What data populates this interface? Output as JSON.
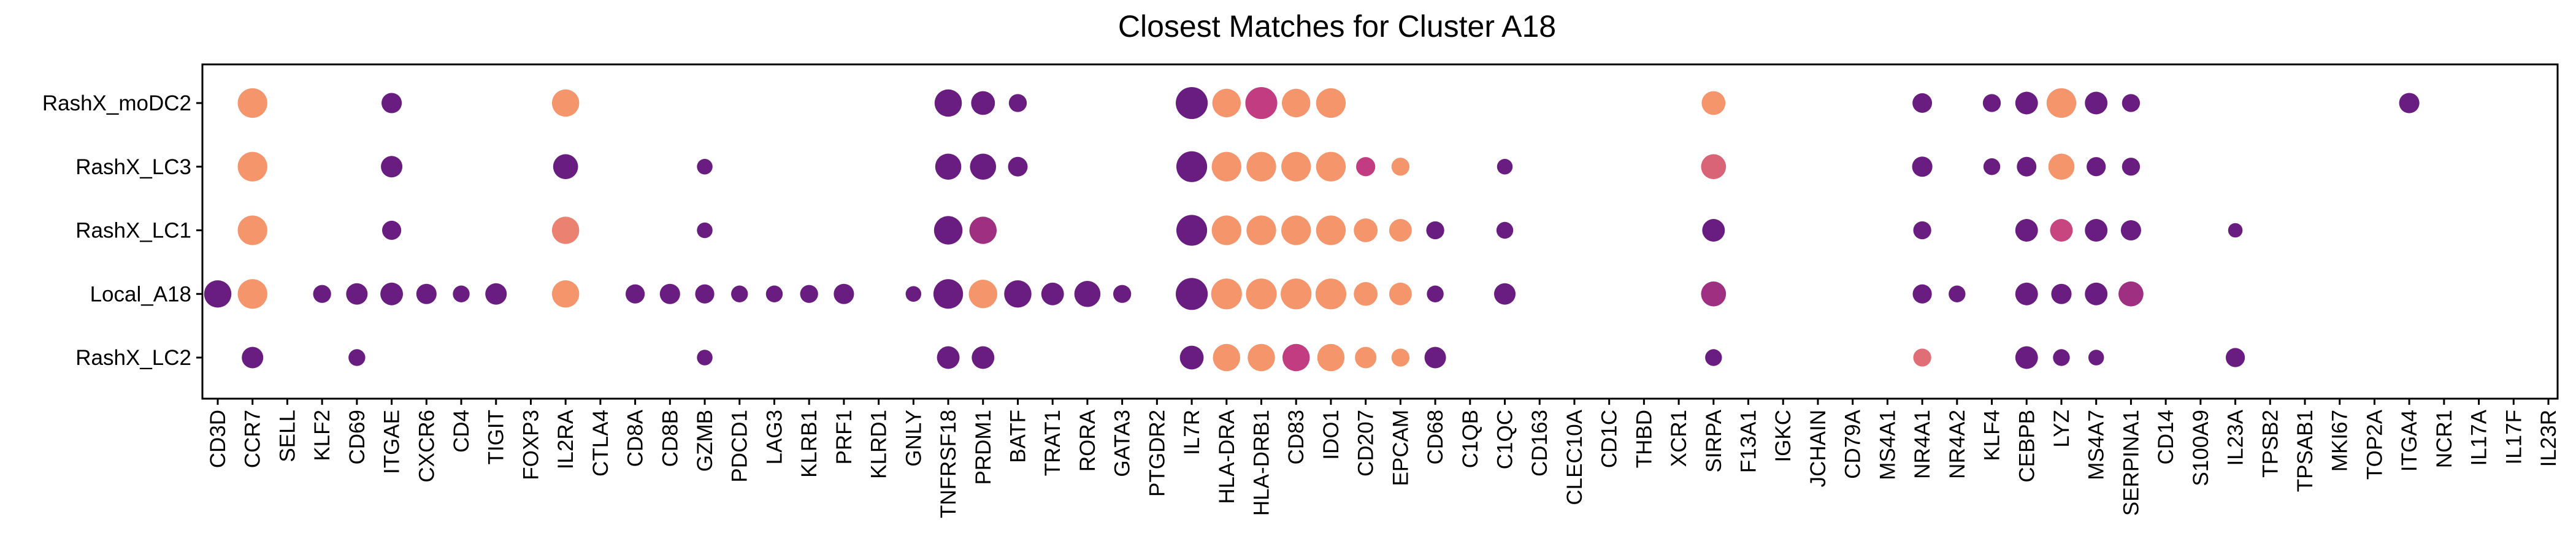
{
  "chart_data": {
    "type": "dot",
    "title": "Closest Matches for Cluster A18",
    "xlabel": "",
    "ylabel": "",
    "grid": false,
    "legend": "none",
    "genes": [
      "CD3D",
      "CCR7",
      "SELL",
      "KLF2",
      "CD69",
      "ITGAE",
      "CXCR6",
      "CD4",
      "TIGIT",
      "FOXP3",
      "IL2RA",
      "CTLA4",
      "CD8A",
      "CD8B",
      "GZMB",
      "PDCD1",
      "LAG3",
      "KLRB1",
      "PRF1",
      "KLRD1",
      "GNLY",
      "TNFRSF18",
      "PRDM1",
      "BATF",
      "TRAT1",
      "RORA",
      "GATA3",
      "PTGDR2",
      "IL7R",
      "HLA-DRA",
      "HLA-DRB1",
      "CD83",
      "IDO1",
      "CD207",
      "EPCAM",
      "CD68",
      "C1QB",
      "C1QC",
      "CD163",
      "CLEC10A",
      "CD1C",
      "THBD",
      "XCR1",
      "SIRPA",
      "F13A1",
      "IGKC",
      "JCHAIN",
      "CD79A",
      "MS4A1",
      "NR4A1",
      "NR4A2",
      "KLF4",
      "CEBPB",
      "LYZ",
      "MS4A7",
      "SERPINA1",
      "CD14",
      "S100A9",
      "IL23A",
      "TPSB2",
      "TPSAB1",
      "MKI67",
      "TOP2A",
      "ITGA4",
      "NCR1",
      "IL17A",
      "IL17F",
      "IL23R"
    ],
    "clusters": [
      "RashX_moDC2",
      "RashX_LC3",
      "RashX_LC1",
      "Local_A18",
      "RashX_LC2"
    ],
    "colors": {
      "low": "#6a1d80",
      "mid": "#c23c81",
      "high": "#fb9f6a"
    },
    "points": [
      {
        "cluster": "RashX_moDC2",
        "gene": "CCR7",
        "size": 0.85,
        "color": 0.95
      },
      {
        "cluster": "RashX_moDC2",
        "gene": "ITGAE",
        "size": 0.45,
        "color": 0.0
      },
      {
        "cluster": "RashX_moDC2",
        "gene": "IL2RA",
        "size": 0.75,
        "color": 0.95
      },
      {
        "cluster": "RashX_moDC2",
        "gene": "TNFRSF18",
        "size": 0.75,
        "color": 0.0
      },
      {
        "cluster": "RashX_moDC2",
        "gene": "PRDM1",
        "size": 0.6,
        "color": 0.0
      },
      {
        "cluster": "RashX_moDC2",
        "gene": "BATF",
        "size": 0.35,
        "color": 0.0
      },
      {
        "cluster": "RashX_moDC2",
        "gene": "IL7R",
        "size": 0.95,
        "color": 0.0
      },
      {
        "cluster": "RashX_moDC2",
        "gene": "HLA-DRA",
        "size": 0.8,
        "color": 0.95
      },
      {
        "cluster": "RashX_moDC2",
        "gene": "HLA-DRB1",
        "size": 0.95,
        "color": 0.5
      },
      {
        "cluster": "RashX_moDC2",
        "gene": "CD83",
        "size": 0.8,
        "color": 0.95
      },
      {
        "cluster": "RashX_moDC2",
        "gene": "IDO1",
        "size": 0.85,
        "color": 0.95
      },
      {
        "cluster": "RashX_moDC2",
        "gene": "SIRPA",
        "size": 0.6,
        "color": 0.95
      },
      {
        "cluster": "RashX_moDC2",
        "gene": "NR4A1",
        "size": 0.42,
        "color": 0.0
      },
      {
        "cluster": "RashX_moDC2",
        "gene": "KLF4",
        "size": 0.35,
        "color": 0.0
      },
      {
        "cluster": "RashX_moDC2",
        "gene": "CEBPB",
        "size": 0.55,
        "color": 0.0
      },
      {
        "cluster": "RashX_moDC2",
        "gene": "LYZ",
        "size": 0.85,
        "color": 0.95
      },
      {
        "cluster": "RashX_moDC2",
        "gene": "MS4A7",
        "size": 0.55,
        "color": 0.0
      },
      {
        "cluster": "RashX_moDC2",
        "gene": "SERPINA1",
        "size": 0.35,
        "color": 0.0
      },
      {
        "cluster": "RashX_moDC2",
        "gene": "ITGA4",
        "size": 0.45,
        "color": 0.0
      },
      {
        "cluster": "RashX_LC3",
        "gene": "CCR7",
        "size": 0.85,
        "color": 0.95
      },
      {
        "cluster": "RashX_LC3",
        "gene": "ITGAE",
        "size": 0.5,
        "color": 0.0
      },
      {
        "cluster": "RashX_LC3",
        "gene": "IL2RA",
        "size": 0.65,
        "color": 0.0
      },
      {
        "cluster": "RashX_LC3",
        "gene": "GZMB",
        "size": 0.25,
        "color": 0.0
      },
      {
        "cluster": "RashX_LC3",
        "gene": "TNFRSF18",
        "size": 0.7,
        "color": 0.0
      },
      {
        "cluster": "RashX_LC3",
        "gene": "PRDM1",
        "size": 0.7,
        "color": 0.0
      },
      {
        "cluster": "RashX_LC3",
        "gene": "BATF",
        "size": 0.42,
        "color": 0.0
      },
      {
        "cluster": "RashX_LC3",
        "gene": "IL7R",
        "size": 0.9,
        "color": 0.0
      },
      {
        "cluster": "RashX_LC3",
        "gene": "HLA-DRA",
        "size": 0.85,
        "color": 0.95
      },
      {
        "cluster": "RashX_LC3",
        "gene": "HLA-DRB1",
        "size": 0.85,
        "color": 0.95
      },
      {
        "cluster": "RashX_LC3",
        "gene": "CD83",
        "size": 0.85,
        "color": 0.95
      },
      {
        "cluster": "RashX_LC3",
        "gene": "IDO1",
        "size": 0.85,
        "color": 0.95
      },
      {
        "cluster": "RashX_LC3",
        "gene": "CD207",
        "size": 0.4,
        "color": 0.5
      },
      {
        "cluster": "RashX_LC3",
        "gene": "EPCAM",
        "size": 0.35,
        "color": 0.95
      },
      {
        "cluster": "RashX_LC3",
        "gene": "C1QC",
        "size": 0.25,
        "color": 0.0
      },
      {
        "cluster": "RashX_LC3",
        "gene": "SIRPA",
        "size": 0.65,
        "color": 0.7
      },
      {
        "cluster": "RashX_LC3",
        "gene": "NR4A1",
        "size": 0.45,
        "color": 0.0
      },
      {
        "cluster": "RashX_LC3",
        "gene": "KLF4",
        "size": 0.3,
        "color": 0.0
      },
      {
        "cluster": "RashX_LC3",
        "gene": "CEBPB",
        "size": 0.42,
        "color": 0.0
      },
      {
        "cluster": "RashX_LC3",
        "gene": "LYZ",
        "size": 0.7,
        "color": 0.95
      },
      {
        "cluster": "RashX_LC3",
        "gene": "MS4A7",
        "size": 0.4,
        "color": 0.0
      },
      {
        "cluster": "RashX_LC3",
        "gene": "SERPINA1",
        "size": 0.35,
        "color": 0.0
      },
      {
        "cluster": "RashX_LC1",
        "gene": "CCR7",
        "size": 0.85,
        "color": 0.95
      },
      {
        "cluster": "RashX_LC1",
        "gene": "ITGAE",
        "size": 0.4,
        "color": 0.0
      },
      {
        "cluster": "RashX_LC1",
        "gene": "IL2RA",
        "size": 0.75,
        "color": 0.85
      },
      {
        "cluster": "RashX_LC1",
        "gene": "GZMB",
        "size": 0.25,
        "color": 0.0
      },
      {
        "cluster": "RashX_LC1",
        "gene": "TNFRSF18",
        "size": 0.8,
        "color": 0.0
      },
      {
        "cluster": "RashX_LC1",
        "gene": "PRDM1",
        "size": 0.75,
        "color": 0.3
      },
      {
        "cluster": "RashX_LC1",
        "gene": "IL7R",
        "size": 0.9,
        "color": 0.0
      },
      {
        "cluster": "RashX_LC1",
        "gene": "HLA-DRA",
        "size": 0.85,
        "color": 0.95
      },
      {
        "cluster": "RashX_LC1",
        "gene": "HLA-DRB1",
        "size": 0.85,
        "color": 0.95
      },
      {
        "cluster": "RashX_LC1",
        "gene": "CD83",
        "size": 0.85,
        "color": 0.95
      },
      {
        "cluster": "RashX_LC1",
        "gene": "IDO1",
        "size": 0.85,
        "color": 0.95
      },
      {
        "cluster": "RashX_LC1",
        "gene": "CD207",
        "size": 0.6,
        "color": 0.95
      },
      {
        "cluster": "RashX_LC1",
        "gene": "EPCAM",
        "size": 0.55,
        "color": 0.95
      },
      {
        "cluster": "RashX_LC1",
        "gene": "CD68",
        "size": 0.35,
        "color": 0.0
      },
      {
        "cluster": "RashX_LC1",
        "gene": "C1QC",
        "size": 0.3,
        "color": 0.0
      },
      {
        "cluster": "RashX_LC1",
        "gene": "SIRPA",
        "size": 0.55,
        "color": 0.0
      },
      {
        "cluster": "RashX_LC1",
        "gene": "NR4A1",
        "size": 0.35,
        "color": 0.0
      },
      {
        "cluster": "RashX_LC1",
        "gene": "CEBPB",
        "size": 0.55,
        "color": 0.0
      },
      {
        "cluster": "RashX_LC1",
        "gene": "LYZ",
        "size": 0.55,
        "color": 0.55
      },
      {
        "cluster": "RashX_LC1",
        "gene": "MS4A7",
        "size": 0.55,
        "color": 0.0
      },
      {
        "cluster": "RashX_LC1",
        "gene": "SERPINA1",
        "size": 0.45,
        "color": 0.0
      },
      {
        "cluster": "RashX_LC1",
        "gene": "IL23A",
        "size": 0.2,
        "color": 0.0
      },
      {
        "cluster": "Local_A18",
        "gene": "CD3D",
        "size": 0.75,
        "color": 0.0
      },
      {
        "cluster": "Local_A18",
        "gene": "CCR7",
        "size": 0.85,
        "color": 0.95
      },
      {
        "cluster": "Local_A18",
        "gene": "KLF2",
        "size": 0.35,
        "color": 0.0
      },
      {
        "cluster": "Local_A18",
        "gene": "CD69",
        "size": 0.5,
        "color": 0.0
      },
      {
        "cluster": "Local_A18",
        "gene": "ITGAE",
        "size": 0.55,
        "color": 0.0
      },
      {
        "cluster": "Local_A18",
        "gene": "CXCR6",
        "size": 0.45,
        "color": 0.0
      },
      {
        "cluster": "Local_A18",
        "gene": "CD4",
        "size": 0.3,
        "color": 0.0
      },
      {
        "cluster": "Local_A18",
        "gene": "TIGIT",
        "size": 0.5,
        "color": 0.0
      },
      {
        "cluster": "Local_A18",
        "gene": "IL2RA",
        "size": 0.75,
        "color": 0.95
      },
      {
        "cluster": "Local_A18",
        "gene": "CD8A",
        "size": 0.4,
        "color": 0.0
      },
      {
        "cluster": "Local_A18",
        "gene": "CD8B",
        "size": 0.45,
        "color": 0.0
      },
      {
        "cluster": "Local_A18",
        "gene": "GZMB",
        "size": 0.4,
        "color": 0.0
      },
      {
        "cluster": "Local_A18",
        "gene": "PDCD1",
        "size": 0.3,
        "color": 0.0
      },
      {
        "cluster": "Local_A18",
        "gene": "LAG3",
        "size": 0.3,
        "color": 0.0
      },
      {
        "cluster": "Local_A18",
        "gene": "KLRB1",
        "size": 0.35,
        "color": 0.0
      },
      {
        "cluster": "Local_A18",
        "gene": "PRF1",
        "size": 0.45,
        "color": 0.0
      },
      {
        "cluster": "Local_A18",
        "gene": "GNLY",
        "size": 0.25,
        "color": 0.0
      },
      {
        "cluster": "Local_A18",
        "gene": "TNFRSF18",
        "size": 0.85,
        "color": 0.0
      },
      {
        "cluster": "Local_A18",
        "gene": "PRDM1",
        "size": 0.8,
        "color": 0.95
      },
      {
        "cluster": "Local_A18",
        "gene": "BATF",
        "size": 0.75,
        "color": 0.0
      },
      {
        "cluster": "Local_A18",
        "gene": "TRAT1",
        "size": 0.55,
        "color": 0.0
      },
      {
        "cluster": "Local_A18",
        "gene": "RORA",
        "size": 0.7,
        "color": 0.0
      },
      {
        "cluster": "Local_A18",
        "gene": "GATA3",
        "size": 0.35,
        "color": 0.0
      },
      {
        "cluster": "Local_A18",
        "gene": "IL7R",
        "size": 0.95,
        "color": 0.0
      },
      {
        "cluster": "Local_A18",
        "gene": "HLA-DRA",
        "size": 0.9,
        "color": 0.95
      },
      {
        "cluster": "Local_A18",
        "gene": "HLA-DRB1",
        "size": 0.9,
        "color": 0.95
      },
      {
        "cluster": "Local_A18",
        "gene": "CD83",
        "size": 0.9,
        "color": 0.95
      },
      {
        "cluster": "Local_A18",
        "gene": "IDO1",
        "size": 0.9,
        "color": 0.95
      },
      {
        "cluster": "Local_A18",
        "gene": "CD207",
        "size": 0.6,
        "color": 0.95
      },
      {
        "cluster": "Local_A18",
        "gene": "EPCAM",
        "size": 0.55,
        "color": 0.95
      },
      {
        "cluster": "Local_A18",
        "gene": "CD68",
        "size": 0.3,
        "color": 0.0
      },
      {
        "cluster": "Local_A18",
        "gene": "C1QC",
        "size": 0.5,
        "color": 0.0
      },
      {
        "cluster": "Local_A18",
        "gene": "SIRPA",
        "size": 0.65,
        "color": 0.3
      },
      {
        "cluster": "Local_A18",
        "gene": "NR4A1",
        "size": 0.4,
        "color": 0.0
      },
      {
        "cluster": "Local_A18",
        "gene": "NR4A2",
        "size": 0.3,
        "color": 0.0
      },
      {
        "cluster": "Local_A18",
        "gene": "CEBPB",
        "size": 0.55,
        "color": 0.0
      },
      {
        "cluster": "Local_A18",
        "gene": "LYZ",
        "size": 0.45,
        "color": 0.0
      },
      {
        "cluster": "Local_A18",
        "gene": "MS4A7",
        "size": 0.55,
        "color": 0.0
      },
      {
        "cluster": "Local_A18",
        "gene": "SERPINA1",
        "size": 0.65,
        "color": 0.3
      },
      {
        "cluster": "RashX_LC2",
        "gene": "CCR7",
        "size": 0.5,
        "color": 0.0
      },
      {
        "cluster": "RashX_LC2",
        "gene": "CD69",
        "size": 0.3,
        "color": 0.0
      },
      {
        "cluster": "RashX_LC2",
        "gene": "GZMB",
        "size": 0.25,
        "color": 0.0
      },
      {
        "cluster": "RashX_LC2",
        "gene": "TNFRSF18",
        "size": 0.55,
        "color": 0.0
      },
      {
        "cluster": "RashX_LC2",
        "gene": "PRDM1",
        "size": 0.55,
        "color": 0.0
      },
      {
        "cluster": "RashX_LC2",
        "gene": "IL7R",
        "size": 0.6,
        "color": 0.0
      },
      {
        "cluster": "RashX_LC2",
        "gene": "HLA-DRA",
        "size": 0.75,
        "color": 0.95
      },
      {
        "cluster": "RashX_LC2",
        "gene": "HLA-DRB1",
        "size": 0.75,
        "color": 0.95
      },
      {
        "cluster": "RashX_LC2",
        "gene": "CD83",
        "size": 0.75,
        "color": 0.5
      },
      {
        "cluster": "RashX_LC2",
        "gene": "IDO1",
        "size": 0.75,
        "color": 0.95
      },
      {
        "cluster": "RashX_LC2",
        "gene": "CD207",
        "size": 0.5,
        "color": 0.95
      },
      {
        "cluster": "RashX_LC2",
        "gene": "EPCAM",
        "size": 0.35,
        "color": 0.95
      },
      {
        "cluster": "RashX_LC2",
        "gene": "CD68",
        "size": 0.5,
        "color": 0.0
      },
      {
        "cluster": "RashX_LC2",
        "gene": "SIRPA",
        "size": 0.3,
        "color": 0.0
      },
      {
        "cluster": "RashX_LC2",
        "gene": "NR4A1",
        "size": 0.35,
        "color": 0.75
      },
      {
        "cluster": "RashX_LC2",
        "gene": "CEBPB",
        "size": 0.55,
        "color": 0.0
      },
      {
        "cluster": "RashX_LC2",
        "gene": "LYZ",
        "size": 0.3,
        "color": 0.0
      },
      {
        "cluster": "RashX_LC2",
        "gene": "MS4A7",
        "size": 0.25,
        "color": 0.0
      },
      {
        "cluster": "RashX_LC2",
        "gene": "IL23A",
        "size": 0.4,
        "color": 0.0
      }
    ]
  }
}
